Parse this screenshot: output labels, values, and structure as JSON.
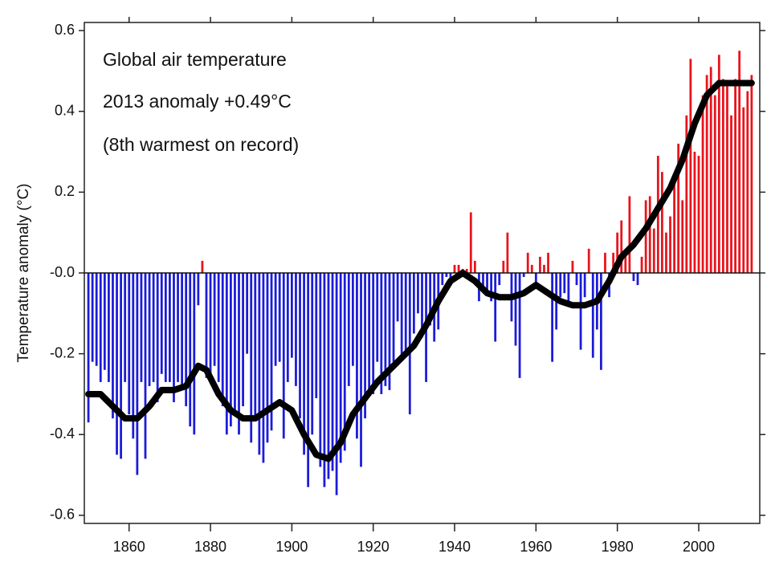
{
  "chart_data": {
    "type": "bar",
    "annotation": [
      "Global air temperature",
      "2013 anomaly +0.49°C",
      "(8th warmest on record)"
    ],
    "ylabel": "Temperature anomaly (°C)",
    "positive_color": "#e8141c",
    "negative_color": "#1c1cd8",
    "xlim": [
      1849,
      2015
    ],
    "ylim": [
      -0.62,
      0.62
    ],
    "xticks": [
      1860,
      1880,
      1900,
      1920,
      1940,
      1960,
      1980,
      2000
    ],
    "yticks": [
      -0.6,
      -0.4,
      -0.2,
      {
        "value": 0,
        "label": "-0.0"
      },
      0.2,
      0.4,
      0.6
    ],
    "x": [
      1850,
      1851,
      1852,
      1853,
      1854,
      1855,
      1856,
      1857,
      1858,
      1859,
      1860,
      1861,
      1862,
      1863,
      1864,
      1865,
      1866,
      1867,
      1868,
      1869,
      1870,
      1871,
      1872,
      1873,
      1874,
      1875,
      1876,
      1877,
      1878,
      1879,
      1880,
      1881,
      1882,
      1883,
      1884,
      1885,
      1886,
      1887,
      1888,
      1889,
      1890,
      1891,
      1892,
      1893,
      1894,
      1895,
      1896,
      1897,
      1898,
      1899,
      1900,
      1901,
      1902,
      1903,
      1904,
      1905,
      1906,
      1907,
      1908,
      1909,
      1910,
      1911,
      1912,
      1913,
      1914,
      1915,
      1916,
      1917,
      1918,
      1919,
      1920,
      1921,
      1922,
      1923,
      1924,
      1925,
      1926,
      1927,
      1928,
      1929,
      1930,
      1931,
      1932,
      1933,
      1934,
      1935,
      1936,
      1937,
      1938,
      1939,
      1940,
      1941,
      1942,
      1943,
      1944,
      1945,
      1946,
      1947,
      1948,
      1949,
      1950,
      1951,
      1952,
      1953,
      1954,
      1955,
      1956,
      1957,
      1958,
      1959,
      1960,
      1961,
      1962,
      1963,
      1964,
      1965,
      1966,
      1967,
      1968,
      1969,
      1970,
      1971,
      1972,
      1973,
      1974,
      1975,
      1976,
      1977,
      1978,
      1979,
      1980,
      1981,
      1982,
      1983,
      1984,
      1985,
      1986,
      1987,
      1988,
      1989,
      1990,
      1991,
      1992,
      1993,
      1994,
      1995,
      1996,
      1997,
      1998,
      1999,
      2000,
      2001,
      2002,
      2003,
      2004,
      2005,
      2006,
      2007,
      2008,
      2009,
      2010,
      2011,
      2012,
      2013
    ],
    "values": [
      -0.37,
      -0.22,
      -0.23,
      -0.27,
      -0.24,
      -0.27,
      -0.36,
      -0.45,
      -0.46,
      -0.27,
      -0.35,
      -0.41,
      -0.5,
      -0.27,
      -0.46,
      -0.28,
      -0.27,
      -0.32,
      -0.25,
      -0.27,
      -0.27,
      -0.32,
      -0.27,
      -0.28,
      -0.33,
      -0.38,
      -0.4,
      -0.08,
      0.03,
      -0.26,
      -0.27,
      -0.23,
      -0.27,
      -0.33,
      -0.4,
      -0.38,
      -0.35,
      -0.4,
      -0.33,
      -0.2,
      -0.42,
      -0.36,
      -0.45,
      -0.47,
      -0.42,
      -0.39,
      -0.23,
      -0.22,
      -0.41,
      -0.27,
      -0.21,
      -0.28,
      -0.36,
      -0.45,
      -0.53,
      -0.4,
      -0.31,
      -0.48,
      -0.53,
      -0.51,
      -0.49,
      -0.55,
      -0.47,
      -0.44,
      -0.28,
      -0.23,
      -0.41,
      -0.48,
      -0.36,
      -0.3,
      -0.3,
      -0.22,
      -0.3,
      -0.28,
      -0.29,
      -0.22,
      -0.12,
      -0.21,
      -0.2,
      -0.35,
      -0.15,
      -0.1,
      -0.16,
      -0.27,
      -0.13,
      -0.17,
      -0.14,
      -0.03,
      -0.01,
      -0.03,
      0.02,
      0.02,
      0.01,
      0.01,
      0.15,
      0.03,
      -0.07,
      -0.04,
      -0.05,
      -0.07,
      -0.17,
      -0.03,
      0.03,
      0.1,
      -0.12,
      -0.18,
      -0.26,
      -0.01,
      0.05,
      0.02,
      -0.03,
      0.04,
      0.02,
      0.05,
      -0.22,
      -0.14,
      -0.06,
      -0.05,
      -0.08,
      0.03,
      -0.03,
      -0.19,
      -0.06,
      0.06,
      -0.21,
      -0.14,
      -0.24,
      0.05,
      -0.06,
      0.05,
      0.1,
      0.13,
      0.05,
      0.19,
      -0.02,
      -0.03,
      0.04,
      0.18,
      0.19,
      0.11,
      0.29,
      0.25,
      0.1,
      0.14,
      0.22,
      0.32,
      0.18,
      0.39,
      0.53,
      0.3,
      0.29,
      0.44,
      0.49,
      0.51,
      0.44,
      0.54,
      0.48,
      0.47,
      0.39,
      0.48,
      0.55,
      0.41,
      0.45,
      0.49
    ],
    "smooth": {
      "color": "#000000",
      "x": [
        1850,
        1853,
        1856,
        1859,
        1862,
        1865,
        1868,
        1871,
        1874,
        1877,
        1879,
        1882,
        1885,
        1888,
        1891,
        1894,
        1897,
        1900,
        1903,
        1906,
        1909,
        1912,
        1915,
        1918,
        1921,
        1924,
        1927,
        1930,
        1933,
        1936,
        1939,
        1942,
        1945,
        1948,
        1951,
        1954,
        1957,
        1960,
        1963,
        1966,
        1969,
        1972,
        1975,
        1978,
        1981,
        1984,
        1987,
        1990,
        1993,
        1996,
        1999,
        2002,
        2005,
        2008,
        2011,
        2013
      ],
      "values": [
        -0.3,
        -0.3,
        -0.33,
        -0.36,
        -0.36,
        -0.33,
        -0.29,
        -0.29,
        -0.28,
        -0.23,
        -0.24,
        -0.3,
        -0.34,
        -0.36,
        -0.36,
        -0.34,
        -0.32,
        -0.34,
        -0.4,
        -0.45,
        -0.46,
        -0.42,
        -0.35,
        -0.31,
        -0.27,
        -0.24,
        -0.21,
        -0.18,
        -0.13,
        -0.07,
        -0.02,
        0,
        -0.02,
        -0.05,
        -0.06,
        -0.06,
        -0.05,
        -0.03,
        -0.05,
        -0.07,
        -0.08,
        -0.08,
        -0.07,
        -0.02,
        0.04,
        0.07,
        0.11,
        0.16,
        0.21,
        0.28,
        0.37,
        0.44,
        0.47,
        0.47,
        0.47,
        0.47
      ]
    }
  }
}
